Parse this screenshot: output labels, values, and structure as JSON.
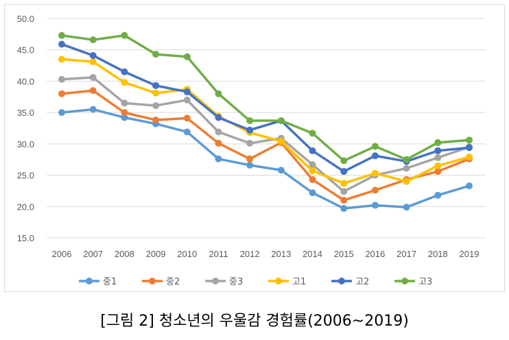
{
  "chart_data": {
    "type": "line",
    "title": "",
    "xlabel": "",
    "ylabel": "",
    "ylim": [
      15,
      50
    ],
    "yticks": [
      "15.0",
      "20.0",
      "25.0",
      "30.0",
      "35.0",
      "40.0",
      "45.0",
      "50.0"
    ],
    "grid": true,
    "legend": "bottom",
    "categories": [
      "2006",
      "2007",
      "2008",
      "2009",
      "2010",
      "2011",
      "2012",
      "2013",
      "2014",
      "2015",
      "2016",
      "2017",
      "2018",
      "2019"
    ],
    "series": [
      {
        "name": "중1",
        "color": "#5b9bd5",
        "values": [
          35.0,
          35.5,
          34.2,
          33.2,
          31.9,
          27.6,
          26.6,
          25.8,
          22.2,
          19.7,
          20.2,
          19.9,
          21.8,
          23.3
        ]
      },
      {
        "name": "중2",
        "color": "#ed7d31",
        "values": [
          38.0,
          38.5,
          35.0,
          33.8,
          34.1,
          30.1,
          27.6,
          30.2,
          24.3,
          21.0,
          22.6,
          24.3,
          25.6,
          27.6
        ]
      },
      {
        "name": "중3",
        "color": "#a5a5a5",
        "values": [
          40.3,
          40.6,
          36.5,
          36.1,
          37.0,
          31.9,
          30.1,
          30.9,
          26.7,
          22.4,
          25.0,
          26.1,
          27.8,
          29.5
        ]
      },
      {
        "name": "고1",
        "color": "#ffc000",
        "values": [
          43.5,
          43.1,
          39.8,
          38.1,
          38.7,
          34.4,
          31.8,
          30.4,
          25.7,
          23.7,
          25.3,
          24.0,
          26.5,
          27.9
        ]
      },
      {
        "name": "고2",
        "color": "#4472c4",
        "values": [
          45.9,
          44.1,
          41.5,
          39.3,
          38.3,
          34.2,
          32.2,
          33.7,
          28.9,
          25.6,
          28.1,
          27.2,
          28.9,
          29.4
        ]
      },
      {
        "name": "고3",
        "color": "#70ad47",
        "values": [
          47.3,
          46.6,
          47.3,
          44.3,
          43.9,
          38.0,
          33.7,
          33.7,
          31.7,
          27.3,
          29.6,
          27.5,
          30.2,
          30.6
        ]
      }
    ]
  },
  "caption": "[그림 2] 청소년의 우울감 경험률(2006~2019)"
}
